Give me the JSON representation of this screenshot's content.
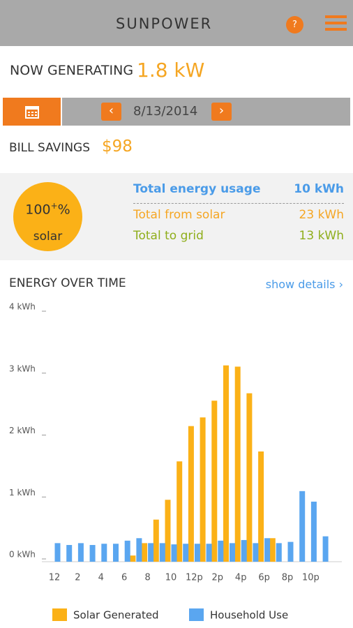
{
  "header": {
    "logo": "SUNPOWER",
    "help": "?"
  },
  "now_generating": {
    "label": "NOW GENERATING",
    "value": "1.8 kW"
  },
  "date_bar": {
    "date": "8/13/2014"
  },
  "bill_savings": {
    "label": "BILL SAVINGS",
    "value": "$98"
  },
  "solar_badge": {
    "value": "100",
    "superscript": "+",
    "unit": "%",
    "label": "solar"
  },
  "summary": {
    "rows": [
      {
        "label": "Total energy usage",
        "value": "10 kWh"
      },
      {
        "label": "Total from solar",
        "value": "23 kWh"
      },
      {
        "label": "Total to grid",
        "value": "13 kWh"
      }
    ]
  },
  "energy_section": {
    "link": "show details ›"
  },
  "chart_data": {
    "type": "bar",
    "title": "ENERGY OVER TIME",
    "categories": [
      "12",
      null,
      "2",
      null,
      "4",
      null,
      "6",
      null,
      "8",
      null,
      "10",
      null,
      "12p",
      null,
      "2p",
      null,
      "4p",
      null,
      "6p",
      null,
      "8p",
      null,
      "10p",
      null
    ],
    "series": [
      {
        "name": "Solar Generated",
        "color": "#fbb117",
        "values": [
          null,
          null,
          null,
          null,
          null,
          null,
          null,
          0.1,
          0.3,
          0.68,
          1.0,
          1.62,
          2.19,
          2.33,
          2.6,
          3.17,
          3.15,
          2.72,
          1.78,
          0.38,
          null,
          null,
          null,
          null
        ]
      },
      {
        "name": "Household Use",
        "color": "#5aa6f0",
        "values": [
          0.3,
          0.27,
          0.3,
          0.27,
          0.29,
          0.29,
          0.34,
          0.38,
          0.3,
          0.3,
          0.28,
          0.29,
          0.29,
          0.29,
          0.34,
          0.3,
          0.35,
          0.3,
          0.38,
          0.3,
          0.32,
          1.14,
          0.97,
          0.41
        ]
      }
    ],
    "ylim": [
      0,
      4
    ],
    "yticks": [
      {
        "value": 0,
        "label": "0 kWh"
      },
      {
        "value": 1,
        "label": "1 kWh"
      },
      {
        "value": 2,
        "label": "2 kWh"
      },
      {
        "value": 3,
        "label": "3 kWh"
      },
      {
        "value": 4,
        "label": "4 kWh"
      }
    ]
  }
}
